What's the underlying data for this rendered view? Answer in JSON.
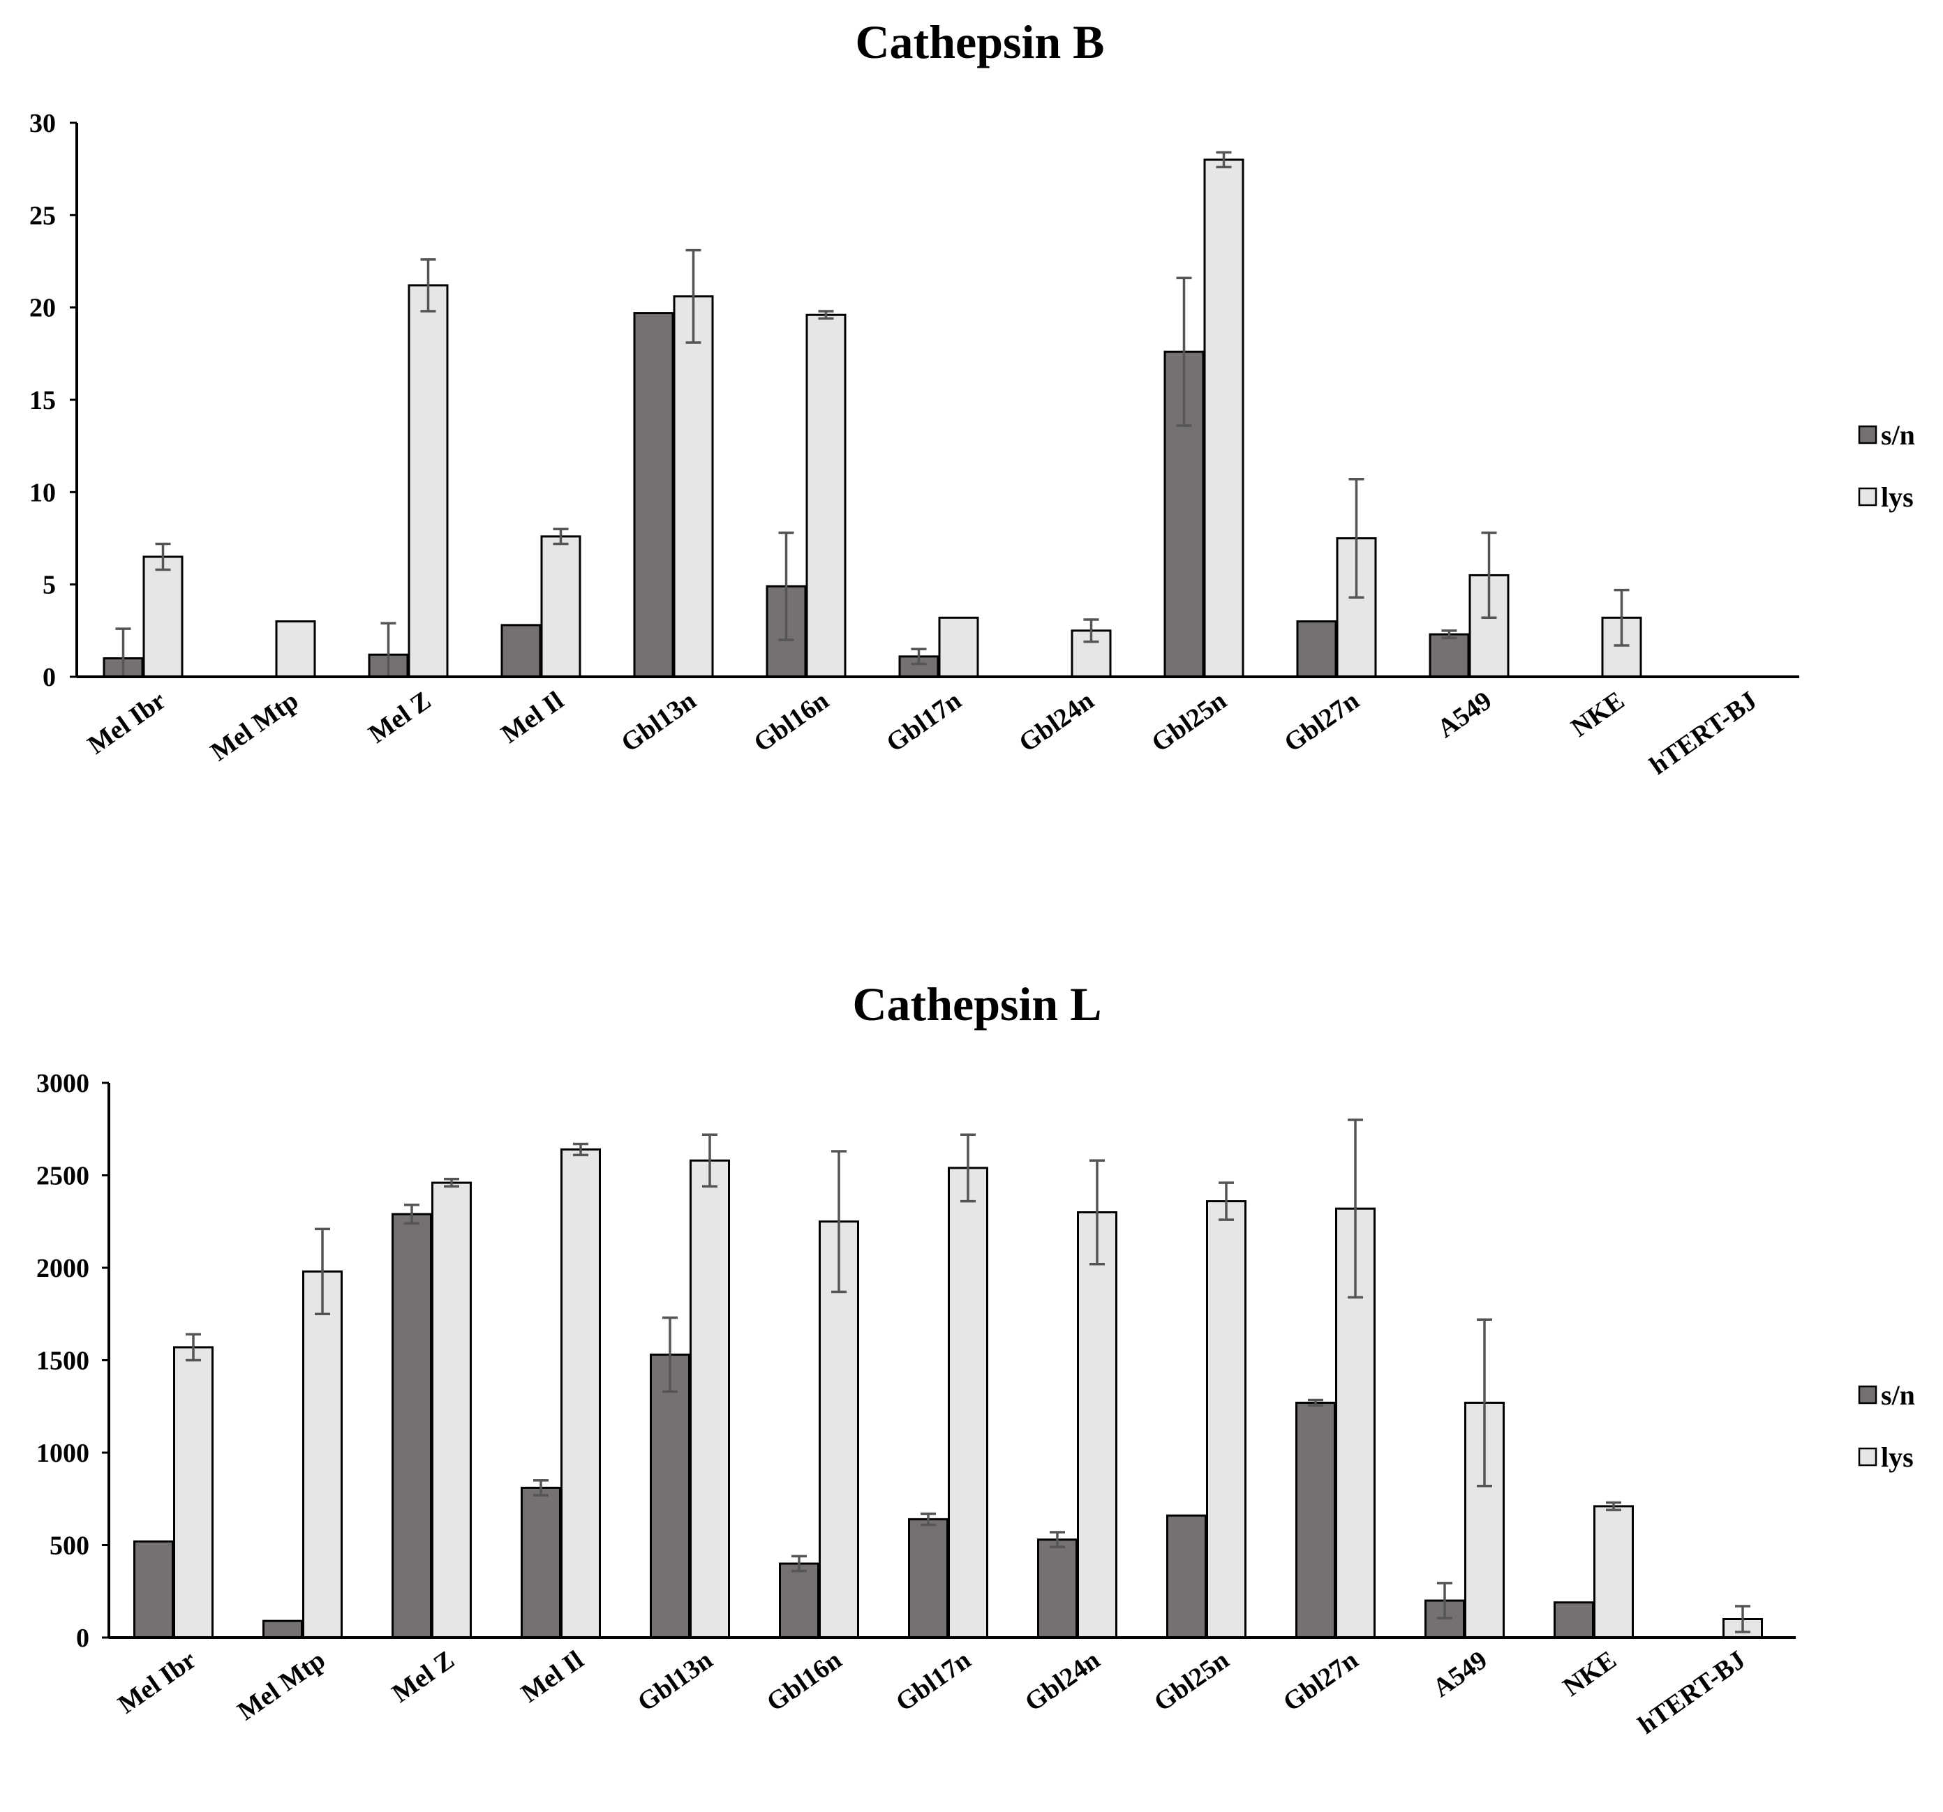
{
  "colors": {
    "sn": "#767171",
    "lys": "#e7e6e6",
    "axis": "#000000",
    "error": "#555555"
  },
  "chart_data": [
    {
      "type": "bar",
      "title": "Cathepsin B",
      "xlabel": "",
      "ylabel": "",
      "ylim": [
        0,
        30
      ],
      "yticks": [
        0,
        5,
        10,
        15,
        20,
        25,
        30
      ],
      "legend_position": "right",
      "categories": [
        "Mel Ibr",
        "Mel Mtp",
        "Mel Z",
        "Mel Il",
        "Gbl13n",
        "Gbl16n",
        "Gbl17n",
        "Gbl24n",
        "Gbl25n",
        "Gbl27n",
        "A549",
        "NKE",
        "hTERT-BJ"
      ],
      "series": [
        {
          "name": "s/n",
          "color_key": "sn",
          "values": [
            1.0,
            0,
            1.2,
            2.8,
            19.7,
            4.9,
            1.1,
            0,
            17.6,
            3.0,
            2.3,
            0,
            0
          ],
          "errors": [
            1.6,
            0,
            1.7,
            0,
            0,
            2.9,
            0.4,
            0,
            4.0,
            0,
            0.2,
            0,
            0
          ]
        },
        {
          "name": "lys",
          "color_key": "lys",
          "values": [
            6.5,
            3.0,
            21.2,
            7.6,
            20.6,
            19.6,
            3.2,
            2.5,
            28.0,
            7.5,
            5.5,
            3.2,
            0
          ],
          "errors": [
            0.7,
            0,
            1.4,
            0.4,
            2.5,
            0.2,
            0,
            0.6,
            0.4,
            3.2,
            2.3,
            1.5,
            0
          ]
        }
      ]
    },
    {
      "type": "bar",
      "title": "Cathepsin L",
      "xlabel": "",
      "ylabel": "",
      "ylim": [
        0,
        3000
      ],
      "yticks": [
        0,
        500,
        1000,
        1500,
        2000,
        2500,
        3000
      ],
      "legend_position": "right",
      "categories": [
        "Mel Ibr",
        "Mel Mtp",
        "Mel Z",
        "Mel Il",
        "Gbl13n",
        "Gbl16n",
        "Gbl17n",
        "Gbl24n",
        "Gbl25n",
        "Gbl27n",
        "A549",
        "NKE",
        "hTERT-BJ"
      ],
      "series": [
        {
          "name": "s/n",
          "color_key": "sn",
          "values": [
            520,
            90,
            2290,
            810,
            1530,
            400,
            640,
            530,
            660,
            1270,
            200,
            190,
            0
          ],
          "errors": [
            0,
            0,
            50,
            40,
            200,
            40,
            30,
            40,
            0,
            15,
            95,
            0,
            0
          ]
        },
        {
          "name": "lys",
          "color_key": "lys",
          "values": [
            1570,
            1980,
            2460,
            2640,
            2580,
            2250,
            2540,
            2300,
            2360,
            2320,
            1270,
            710,
            100
          ],
          "errors": [
            70,
            230,
            20,
            30,
            140,
            380,
            180,
            280,
            100,
            480,
            450,
            20,
            70
          ]
        }
      ]
    }
  ]
}
